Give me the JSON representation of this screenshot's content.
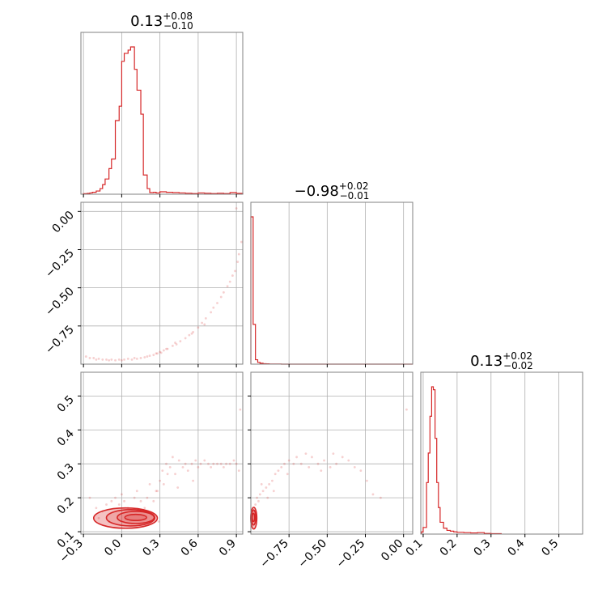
{
  "chart_data": {
    "type": "corner",
    "color": "#d62728",
    "grid": true,
    "parameters": [
      {
        "title": {
          "median": "0.13",
          "plus": "+0.08",
          "minus": "−0.10"
        },
        "range": [
          -0.32,
          0.95
        ],
        "ticks": [
          -0.3,
          0.0,
          0.3,
          0.6,
          0.9
        ],
        "tick_labels": [
          "−0.3",
          "0.0",
          "0.3",
          "0.6",
          "0.9"
        ],
        "hist": {
          "edges": [
            -0.3,
            -0.27,
            -0.25,
            -0.23,
            -0.2,
            -0.17,
            -0.15,
            -0.13,
            -0.1,
            -0.08,
            -0.05,
            -0.02,
            0.0,
            0.02,
            0.05,
            0.07,
            0.1,
            0.12,
            0.15,
            0.17,
            0.2,
            0.22,
            0.25,
            0.27,
            0.3,
            0.35,
            0.4,
            0.45,
            0.5,
            0.55,
            0.6,
            0.65,
            0.7,
            0.75,
            0.8,
            0.85,
            0.9,
            0.95
          ],
          "counts": [
            0.3,
            0.5,
            0.8,
            1.2,
            2.0,
            3.5,
            6.0,
            9.5,
            16,
            22,
            46,
            55,
            83,
            88,
            90,
            92,
            78,
            65,
            50,
            12,
            3.5,
            1.0,
            1.2,
            0.8,
            1.5,
            1.2,
            1.0,
            0.8,
            0.6,
            0.4,
            0.8,
            0.6,
            0.4,
            0.6,
            0.4,
            1.0,
            0.5
          ]
        }
      },
      {
        "title": {
          "median": "−0.98",
          "plus": "+0.02",
          "minus": "−0.01"
        },
        "range": [
          -1.0,
          0.06
        ],
        "ticks": [
          -0.75,
          -0.5,
          -0.25,
          0.0
        ],
        "tick_labels": [
          "−0.75",
          "−0.50",
          "−0.25",
          "0.00"
        ],
        "plot_ticks": [
          0.0,
          -0.25,
          -0.5,
          -0.75
        ],
        "plot_tick_labels": [
          "0.00",
          "−0.25",
          "−0.50",
          "−0.75"
        ],
        "hist": {
          "edges": [
            -1.0,
            -0.985,
            -0.97,
            -0.955,
            -0.94,
            -0.92,
            -0.9,
            -0.88,
            -0.85,
            -0.8,
            0.06
          ],
          "counts": [
            100,
            27,
            3,
            1.2,
            0.6,
            0.3,
            0.2,
            0.1,
            0.05,
            0.0
          ]
        }
      },
      {
        "title": {
          "median": "0.13",
          "plus": "+0.02",
          "minus": "−0.02"
        },
        "range": [
          0.093,
          0.57
        ],
        "ticks": [
          0.1,
          0.2,
          0.3,
          0.4,
          0.5
        ],
        "tick_labels": [
          "0.1",
          "0.2",
          "0.3",
          "0.4",
          "0.5"
        ],
        "hist": {
          "edges": [
            0.095,
            0.1,
            0.11,
            0.115,
            0.12,
            0.125,
            0.13,
            0.135,
            0.14,
            0.145,
            0.15,
            0.16,
            0.17,
            0.18,
            0.19,
            0.2,
            0.22,
            0.24,
            0.26,
            0.28,
            0.3,
            0.33
          ],
          "counts": [
            1.5,
            4.5,
            35,
            55,
            80,
            100,
            98,
            65,
            35,
            18,
            8,
            4,
            2.5,
            2,
            1.5,
            1.2,
            1.0,
            0.8,
            1.0,
            0.4,
            0.3
          ]
        }
      }
    ],
    "scatter": {
      "p0_p1": [
        [
          -0.28,
          -0.95
        ],
        [
          -0.25,
          -0.96
        ],
        [
          -0.22,
          -0.96
        ],
        [
          -0.2,
          -0.97
        ],
        [
          -0.18,
          -0.965
        ],
        [
          -0.15,
          -0.97
        ],
        [
          -0.12,
          -0.97
        ],
        [
          -0.1,
          -0.975
        ],
        [
          -0.08,
          -0.97
        ],
        [
          -0.05,
          -0.975
        ],
        [
          -0.02,
          -0.97
        ],
        [
          0.0,
          -0.975
        ],
        [
          0.02,
          -0.97
        ],
        [
          0.05,
          -0.965
        ],
        [
          0.08,
          -0.97
        ],
        [
          0.1,
          -0.96
        ],
        [
          0.12,
          -0.965
        ],
        [
          0.15,
          -0.96
        ],
        [
          0.18,
          -0.955
        ],
        [
          0.2,
          -0.95
        ],
        [
          0.22,
          -0.945
        ],
        [
          0.25,
          -0.94
        ],
        [
          0.28,
          -0.93
        ],
        [
          0.3,
          -0.92
        ],
        [
          0.33,
          -0.91
        ],
        [
          0.36,
          -0.9
        ],
        [
          0.4,
          -0.88
        ],
        [
          0.43,
          -0.87
        ],
        [
          0.46,
          -0.85
        ],
        [
          0.5,
          -0.83
        ],
        [
          0.53,
          -0.81
        ],
        [
          0.56,
          -0.79
        ],
        [
          0.6,
          -0.76
        ],
        [
          0.63,
          -0.73
        ],
        [
          0.66,
          -0.7
        ],
        [
          0.7,
          -0.66
        ],
        [
          0.72,
          -0.63
        ],
        [
          0.75,
          -0.6
        ],
        [
          0.78,
          -0.56
        ],
        [
          0.8,
          -0.53
        ],
        [
          0.83,
          -0.49
        ],
        [
          0.85,
          -0.46
        ],
        [
          0.87,
          -0.42
        ],
        [
          0.89,
          -0.39
        ],
        [
          0.91,
          -0.33
        ],
        [
          0.92,
          -0.28
        ],
        [
          0.94,
          -0.2
        ],
        [
          0.9,
          0.02
        ],
        [
          0.35,
          -0.9
        ],
        [
          0.42,
          -0.86
        ],
        [
          0.55,
          -0.8
        ],
        [
          0.65,
          -0.74
        ],
        [
          0.27,
          -0.93
        ],
        [
          0.31,
          -0.925
        ]
      ],
      "p0_p2": [
        [
          -0.25,
          0.2
        ],
        [
          -0.2,
          0.17
        ],
        [
          -0.15,
          0.16
        ],
        [
          -0.12,
          0.18
        ],
        [
          -0.1,
          0.13
        ],
        [
          -0.08,
          0.19
        ],
        [
          -0.05,
          0.2
        ],
        [
          -0.02,
          0.18
        ],
        [
          0.0,
          0.21
        ],
        [
          0.02,
          0.19
        ],
        [
          0.05,
          0.17
        ],
        [
          0.1,
          0.2
        ],
        [
          0.15,
          0.19
        ],
        [
          0.2,
          0.2
        ],
        [
          0.22,
          0.24
        ],
        [
          0.25,
          0.19
        ],
        [
          0.28,
          0.22
        ],
        [
          0.3,
          0.25
        ],
        [
          0.32,
          0.28
        ],
        [
          0.35,
          0.3
        ],
        [
          0.38,
          0.29
        ],
        [
          0.4,
          0.32
        ],
        [
          0.42,
          0.27
        ],
        [
          0.45,
          0.31
        ],
        [
          0.48,
          0.29
        ],
        [
          0.5,
          0.3
        ],
        [
          0.52,
          0.28
        ],
        [
          0.55,
          0.3
        ],
        [
          0.58,
          0.31
        ],
        [
          0.6,
          0.29
        ],
        [
          0.62,
          0.3
        ],
        [
          0.65,
          0.31
        ],
        [
          0.68,
          0.3
        ],
        [
          0.7,
          0.29
        ],
        [
          0.72,
          0.3
        ],
        [
          0.75,
          0.3
        ],
        [
          0.78,
          0.3
        ],
        [
          0.8,
          0.29
        ],
        [
          0.82,
          0.3
        ],
        [
          0.85,
          0.3
        ],
        [
          0.88,
          0.31
        ],
        [
          0.9,
          0.3
        ],
        [
          0.92,
          0.28
        ],
        [
          0.93,
          0.46
        ],
        [
          0.27,
          0.22
        ],
        [
          0.33,
          0.24
        ],
        [
          0.44,
          0.23
        ],
        [
          0.56,
          0.25
        ],
        [
          0.36,
          0.27
        ],
        [
          0.18,
          0.17
        ],
        [
          0.24,
          0.15
        ],
        [
          0.29,
          0.13
        ],
        [
          -0.18,
          0.14
        ],
        [
          0.12,
          0.22
        ]
      ],
      "p1_p2": [
        [
          -0.99,
          0.12
        ],
        [
          -0.98,
          0.16
        ],
        [
          -0.97,
          0.18
        ],
        [
          -0.96,
          0.2
        ],
        [
          -0.95,
          0.19
        ],
        [
          -0.94,
          0.21
        ],
        [
          -0.92,
          0.22
        ],
        [
          -0.9,
          0.23
        ],
        [
          -0.88,
          0.24
        ],
        [
          -0.86,
          0.25
        ],
        [
          -0.84,
          0.27
        ],
        [
          -0.82,
          0.28
        ],
        [
          -0.8,
          0.29
        ],
        [
          -0.78,
          0.3
        ],
        [
          -0.75,
          0.31
        ],
        [
          -0.72,
          0.3
        ],
        [
          -0.7,
          0.32
        ],
        [
          -0.67,
          0.3
        ],
        [
          -0.64,
          0.33
        ],
        [
          -0.6,
          0.32
        ],
        [
          -0.56,
          0.3
        ],
        [
          -0.52,
          0.31
        ],
        [
          -0.48,
          0.29
        ],
        [
          -0.44,
          0.3
        ],
        [
          -0.4,
          0.32
        ],
        [
          -0.36,
          0.31
        ],
        [
          -0.32,
          0.29
        ],
        [
          -0.28,
          0.28
        ],
        [
          -0.24,
          0.25
        ],
        [
          -0.2,
          0.21
        ],
        [
          -0.15,
          0.2
        ],
        [
          0.02,
          0.46
        ],
        [
          -0.93,
          0.24
        ],
        [
          -0.89,
          0.2
        ],
        [
          -0.85,
          0.22
        ],
        [
          -0.76,
          0.27
        ],
        [
          -0.62,
          0.29
        ],
        [
          -0.54,
          0.28
        ],
        [
          -0.46,
          0.33
        ],
        [
          -0.97,
          0.14
        ]
      ]
    },
    "contours": {
      "p0_p2": [
        {
          "cx": 0.11,
          "cy": 0.142,
          "rx": 0.085,
          "ry": 0.009
        },
        {
          "cx": 0.11,
          "cy": 0.142,
          "rx": 0.145,
          "ry": 0.018
        },
        {
          "cx": 0.07,
          "cy": 0.141,
          "rx": 0.19,
          "ry": 0.024
        },
        {
          "cx": 0.03,
          "cy": 0.14,
          "rx": 0.25,
          "ry": 0.03
        }
      ],
      "p1_p2": [
        {
          "cx": -0.983,
          "cy": 0.142,
          "rx": 0.008,
          "ry": 0.012
        },
        {
          "cx": -0.982,
          "cy": 0.142,
          "rx": 0.014,
          "ry": 0.022
        },
        {
          "cx": -0.981,
          "cy": 0.14,
          "rx": 0.02,
          "ry": 0.032
        }
      ]
    }
  }
}
